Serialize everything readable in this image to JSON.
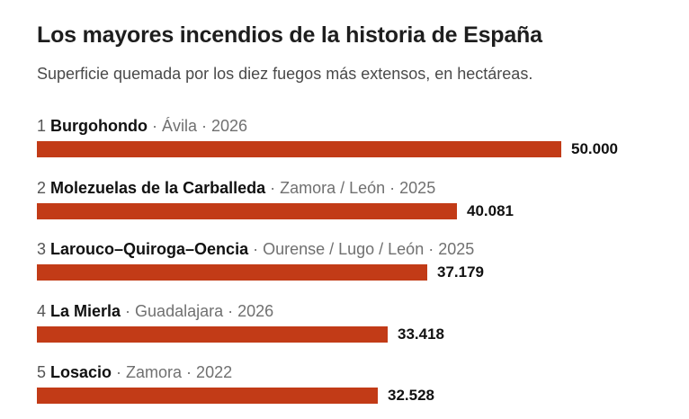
{
  "chart_title": "Los mayores incendios de la historia de España",
  "chart_subtitle": "Superficie quemada por los diez fuegos más extensos, en hectáreas.",
  "colors": {
    "bar": "#c23b17"
  },
  "chart_data": {
    "type": "bar",
    "orientation": "horizontal",
    "title": "Los mayores incendios de la historia de España",
    "subtitle": "Superficie quemada por los diez fuegos más extensos, en hectáreas.",
    "xlim": [
      0,
      50000
    ],
    "grid": false,
    "legend": "none",
    "categories": [
      {
        "rank": "1",
        "name": "Burgohondo",
        "meta": " · Ávila · 2026",
        "value": 50000,
        "value_label": "50.000"
      },
      {
        "rank": "2",
        "name": "Molezuelas de la Carballeda",
        "meta": " · Zamora / León · 2025",
        "value": 40081,
        "value_label": "40.081"
      },
      {
        "rank": "3",
        "name": "Larouco–Quiroga–Oencia",
        "meta": " · Ourense / Lugo / León · 2025",
        "value": 37179,
        "value_label": "37.179"
      },
      {
        "rank": "4",
        "name": "La Mierla",
        "meta": " · Guadalajara · 2026",
        "value": 33418,
        "value_label": "33.418"
      },
      {
        "rank": "5",
        "name": "Losacio",
        "meta": " · Zamora · 2022",
        "value": 32528,
        "value_label": "32.528"
      }
    ]
  }
}
